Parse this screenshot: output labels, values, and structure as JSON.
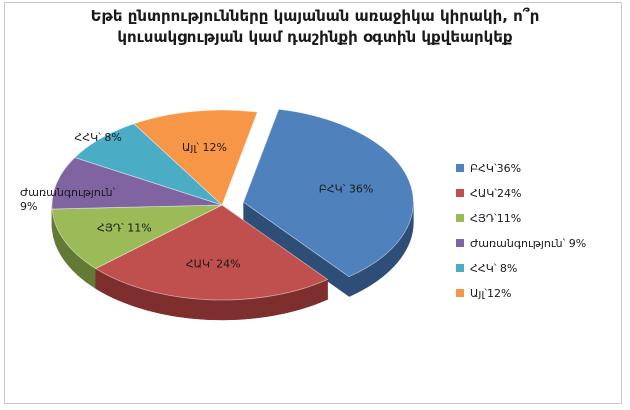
{
  "chart_data": {
    "type": "pie",
    "title_line1": "Եթե ընտրությունները կայանան առաջիկա կիրակի, ո՞ր",
    "title_line2": "կուսակցության կամ դաշինքի օգտին կքվեարկեք",
    "slices": [
      {
        "name": "ԲՀԿ",
        "value": 36,
        "label": "ԲՀԿ՝ 36%",
        "legend": "ԲՀԿ՝36%",
        "color": "#4F81BD",
        "side": "#2E4E78",
        "explode": 22
      },
      {
        "name": "ՀԱԿ",
        "value": 24,
        "label": "ՀԱԿ՝ 24%",
        "legend": "ՀԱԿ՝24%",
        "color": "#C0504D",
        "side": "#7E2E2C",
        "explode": 0
      },
      {
        "name": "ՀՅԴ",
        "value": 11,
        "label": "ՀՅԴ՝ 11%",
        "legend": "ՀՅԴ՝11%",
        "color": "#9BBB59",
        "side": "#637A35",
        "explode": 0
      },
      {
        "name": "Ժառանգություն",
        "value": 9,
        "label": "Ժառանգություն՝",
        "label2": "9%",
        "legend": "Ժառանգություն՝ 9%",
        "color": "#8064A2",
        "side": "#4F3A68",
        "explode": 0
      },
      {
        "name": "ՀՀԿ",
        "value": 8,
        "label": "ՀՀԿ՝ 8%",
        "legend": "ՀՀԿ՝ 8%",
        "color": "#4BACC6",
        "side": "#2A6E80",
        "explode": 0
      },
      {
        "name": "Այլ",
        "value": 12,
        "label": "Այլ՝ 12%",
        "legend": "Այլ՝12%",
        "color": "#F79646",
        "side": "#A85E20",
        "explode": 0
      }
    ]
  }
}
